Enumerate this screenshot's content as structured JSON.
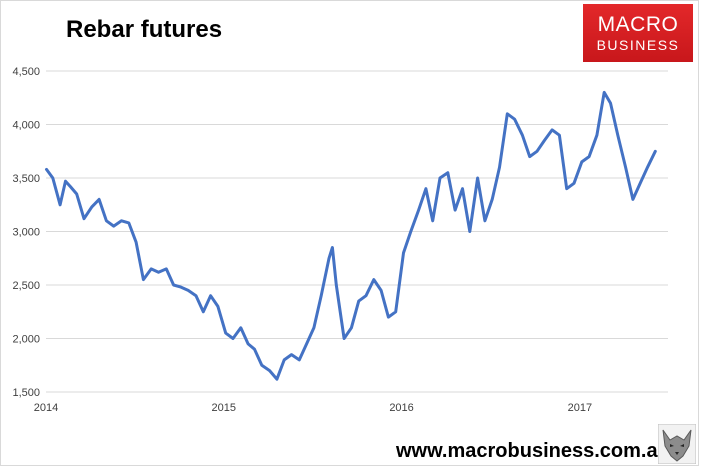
{
  "chart_data": {
    "type": "line",
    "title": "Rebar futures",
    "xlabel": "",
    "ylabel": "",
    "ylim": [
      1500,
      4500
    ],
    "yticks": [
      1500,
      2000,
      2500,
      3000,
      3500,
      4000,
      4500
    ],
    "ytick_labels": [
      "1,500",
      "2,000",
      "2,500",
      "3,000",
      "3,500",
      "4,000",
      "4,500"
    ],
    "xlim": [
      "2014-01-01",
      "2017-07-01"
    ],
    "xtick_labels": [
      "2014",
      "2015",
      "2016",
      "2017"
    ],
    "grid": true,
    "line_color": "#4472c4",
    "series": [
      {
        "x": [
          "2014-01-02",
          "2014-01-15",
          "2014-01-30",
          "2014-02-10",
          "2014-02-20",
          "2014-03-05",
          "2014-03-20",
          "2014-04-05",
          "2014-04-20",
          "2014-05-05",
          "2014-05-20",
          "2014-06-05",
          "2014-06-20",
          "2014-07-05",
          "2014-07-20",
          "2014-08-05",
          "2014-08-20",
          "2014-09-05",
          "2014-09-20",
          "2014-10-05",
          "2014-10-20",
          "2014-11-05",
          "2014-11-20",
          "2014-12-05",
          "2014-12-20",
          "2015-01-05",
          "2015-01-20",
          "2015-02-05",
          "2015-02-20",
          "2015-03-05",
          "2015-03-20",
          "2015-04-05",
          "2015-04-20",
          "2015-05-05",
          "2015-05-20",
          "2015-06-05",
          "2015-06-20",
          "2015-07-05",
          "2015-07-20",
          "2015-08-05",
          "2015-08-12",
          "2015-08-20",
          "2015-09-05",
          "2015-09-20",
          "2015-10-05",
          "2015-10-20",
          "2015-11-05",
          "2015-11-20",
          "2015-12-05",
          "2015-12-20",
          "2016-01-05",
          "2016-01-20",
          "2016-02-05",
          "2016-02-20",
          "2016-03-05",
          "2016-03-20",
          "2016-04-05",
          "2016-04-20",
          "2016-05-05",
          "2016-05-20",
          "2016-06-05",
          "2016-06-20",
          "2016-07-05",
          "2016-07-20",
          "2016-08-05",
          "2016-08-20",
          "2016-09-05",
          "2016-09-20",
          "2016-10-05",
          "2016-10-20",
          "2016-11-05",
          "2016-11-20",
          "2016-12-05",
          "2016-12-20",
          "2017-01-05",
          "2017-01-20",
          "2017-02-05",
          "2017-02-20",
          "2017-03-05",
          "2017-03-20",
          "2017-04-05",
          "2017-04-20",
          "2017-05-05",
          "2017-05-20",
          "2017-06-05"
        ],
        "y": [
          3580,
          3500,
          3250,
          3470,
          3420,
          3350,
          3120,
          3230,
          3300,
          3100,
          3050,
          3100,
          3080,
          2900,
          2550,
          2650,
          2620,
          2650,
          2500,
          2480,
          2450,
          2400,
          2250,
          2400,
          2300,
          2050,
          2000,
          2100,
          1950,
          1900,
          1750,
          1700,
          1620,
          1800,
          1850,
          1800,
          1950,
          2100,
          2400,
          2750,
          2850,
          2500,
          2000,
          2100,
          2350,
          2400,
          2550,
          2450,
          2200,
          2250,
          2800,
          3000,
          3200,
          3400,
          3100,
          3500,
          3550,
          3200,
          3400,
          3000,
          3500,
          3100,
          3300,
          3600,
          4100,
          4050,
          3900,
          3700,
          3750,
          3850,
          3950,
          3900,
          3400,
          3450,
          3650,
          3700,
          3900,
          4300,
          4200,
          3900,
          3600,
          3300,
          3450,
          3600,
          3750
        ]
      }
    ]
  },
  "branding": {
    "logo_line1": "MACRO",
    "logo_line2": "BUSINESS",
    "website": "www.macrobusiness.com.au",
    "wolf_icon": "wolf-icon"
  }
}
